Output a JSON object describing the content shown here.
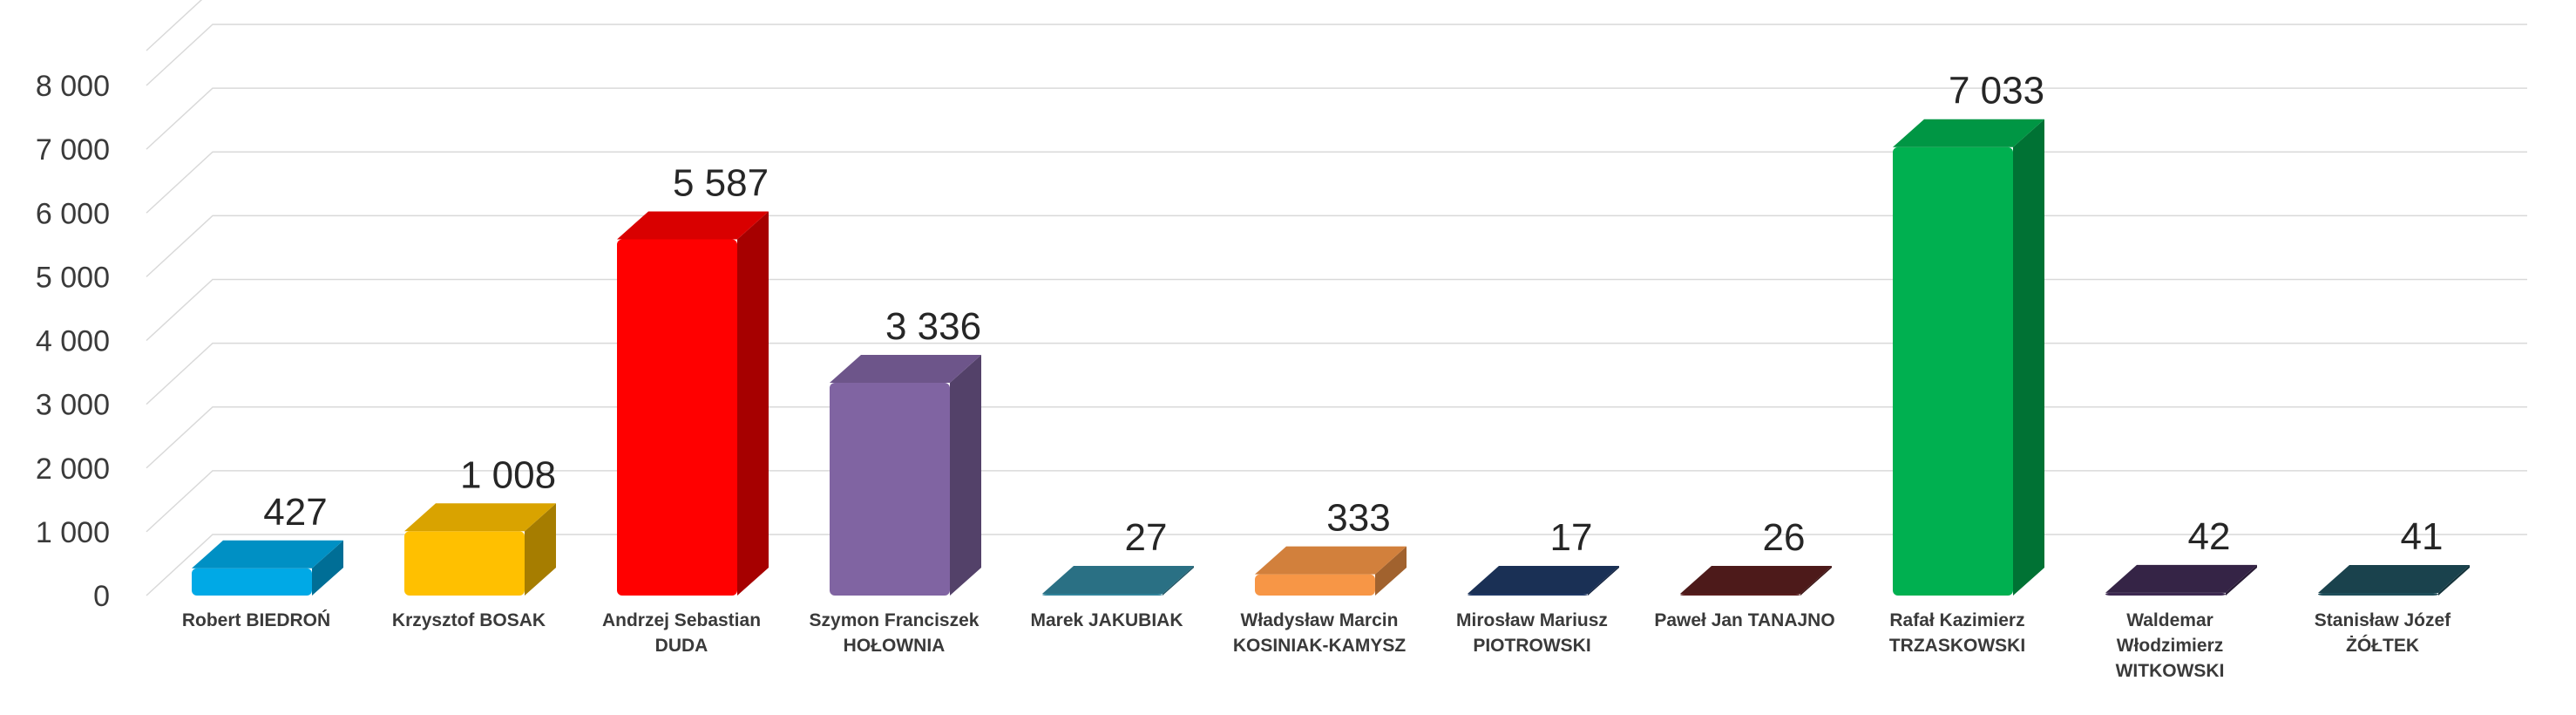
{
  "chart_data": {
    "type": "bar",
    "categories": [
      [
        "Robert BIEDROŃ"
      ],
      [
        "Krzysztof BOSAK"
      ],
      [
        "Andrzej Sebastian",
        "DUDA"
      ],
      [
        "Szymon Franciszek",
        "HOŁOWNIA"
      ],
      [
        "Marek JAKUBIAK"
      ],
      [
        "Władysław Marcin",
        "KOSINIAK-KAMYSZ"
      ],
      [
        "Mirosław Mariusz",
        "PIOTROWSKI"
      ],
      [
        "Paweł Jan TANAJNO"
      ],
      [
        "Rafał Kazimierz",
        "TRZASKOWSKI"
      ],
      [
        "Waldemar",
        "Włodzimierz",
        "WITKOWSKI"
      ],
      [
        "Stanisław Józef",
        "ŻÓŁTEK"
      ]
    ],
    "values": [
      427,
      1008,
      5587,
      3336,
      27,
      333,
      17,
      26,
      7033,
      42,
      41
    ],
    "value_labels": [
      "427",
      "1 008",
      "5 587",
      "3 336",
      "27",
      "333",
      "17",
      "26",
      "7 033",
      "42",
      "41"
    ],
    "yticks": [
      "0",
      "1 000",
      "2 000",
      "3 000",
      "4 000",
      "5 000",
      "6 000",
      "7 000",
      "8 000"
    ],
    "ylim": [
      0,
      8000
    ],
    "grid": true,
    "legend": "none",
    "title": "",
    "xlabel": "",
    "ylabel": "",
    "colors": [
      "#00A9E6",
      "#FFC000",
      "#FF0000",
      "#8064A2",
      "#31849B",
      "#F79646",
      "#1F3864",
      "#5A1E1E",
      "#00B050",
      "#3E2A52",
      "#1F4E5A"
    ]
  }
}
